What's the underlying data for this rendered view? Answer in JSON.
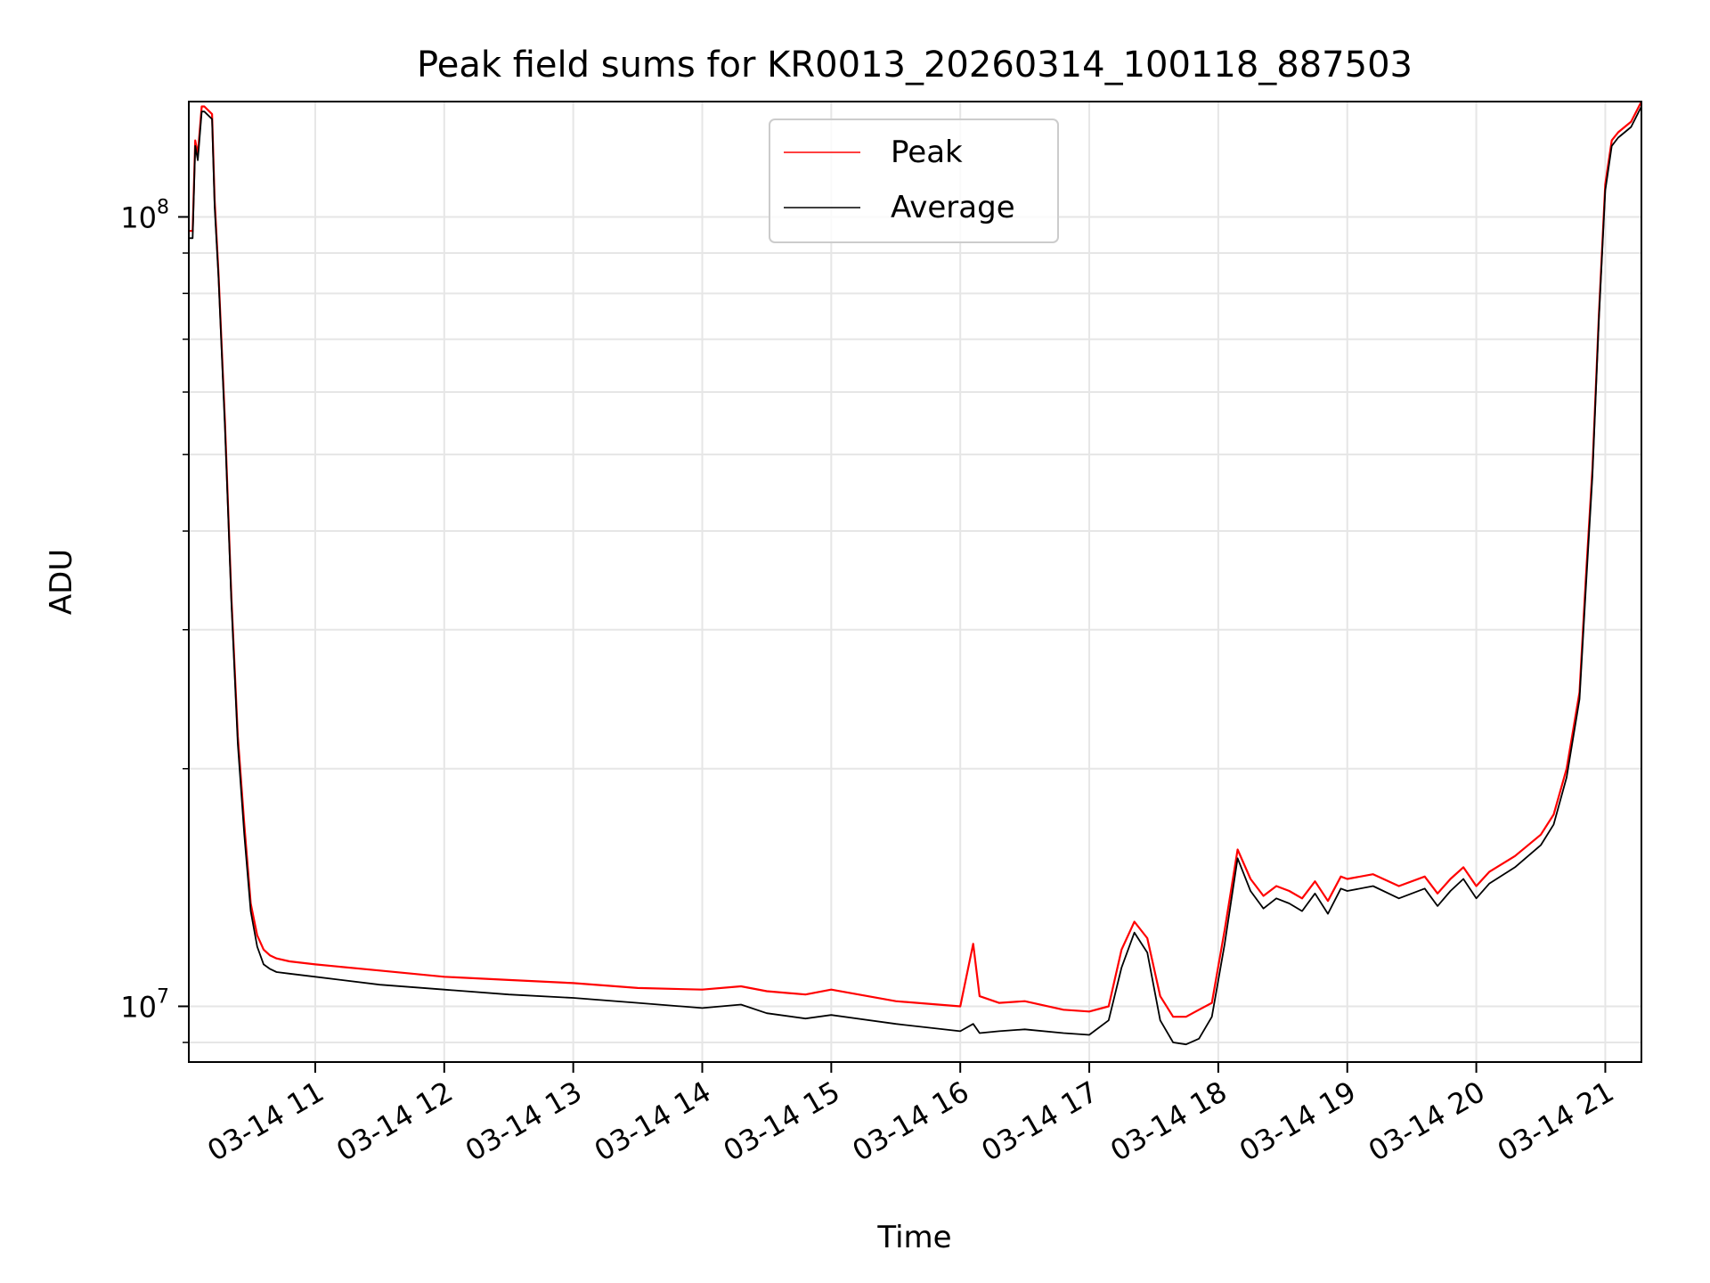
{
  "chart_data": {
    "type": "line",
    "title": "Peak field sums for KR0013_20260314_100118_887503",
    "xlabel": "Time",
    "ylabel": "ADU",
    "xlim_hours": [
      10.02,
      21.28
    ],
    "ylim": [
      8500000,
      140000000
    ],
    "yscale": "log",
    "grid": true,
    "legend_position": "top-center",
    "xticks": [
      {
        "value": 11,
        "label": "03-14 11"
      },
      {
        "value": 12,
        "label": "03-14 12"
      },
      {
        "value": 13,
        "label": "03-14 13"
      },
      {
        "value": 14,
        "label": "03-14 14"
      },
      {
        "value": 15,
        "label": "03-14 15"
      },
      {
        "value": 16,
        "label": "03-14 16"
      },
      {
        "value": 17,
        "label": "03-14 17"
      },
      {
        "value": 18,
        "label": "03-14 18"
      },
      {
        "value": 19,
        "label": "03-14 19"
      },
      {
        "value": 20,
        "label": "03-14 20"
      },
      {
        "value": 21,
        "label": "03-14 21"
      }
    ],
    "yticks": [
      {
        "value": 10000000,
        "base": "10",
        "exp": "7"
      },
      {
        "value": 100000000,
        "base": "10",
        "exp": "8"
      }
    ],
    "series": [
      {
        "name": "Peak",
        "color": "#ff0000",
        "x": [
          10.02,
          10.05,
          10.07,
          10.09,
          10.12,
          10.14,
          10.2,
          10.22,
          10.25,
          10.3,
          10.35,
          10.4,
          10.45,
          10.5,
          10.55,
          10.6,
          10.65,
          10.7,
          10.8,
          11.0,
          11.5,
          12.0,
          12.5,
          13.0,
          13.5,
          14.0,
          14.3,
          14.5,
          14.8,
          15.0,
          15.5,
          16.0,
          16.1,
          16.15,
          16.3,
          16.5,
          16.8,
          17.0,
          17.15,
          17.25,
          17.35,
          17.45,
          17.55,
          17.65,
          17.75,
          17.85,
          17.95,
          18.05,
          18.15,
          18.25,
          18.35,
          18.45,
          18.55,
          18.65,
          18.75,
          18.85,
          18.95,
          19.0,
          19.2,
          19.4,
          19.6,
          19.7,
          19.8,
          19.9,
          20.0,
          20.1,
          20.3,
          20.5,
          20.6,
          20.7,
          20.8,
          20.85,
          20.9,
          20.95,
          21.0,
          21.05,
          21.1,
          21.15,
          21.2,
          21.28
        ],
        "y": [
          96000000,
          96000000,
          125000000,
          120000000,
          138000000,
          138000000,
          135000000,
          105000000,
          85000000,
          55000000,
          33000000,
          22000000,
          17000000,
          13500000,
          12300000,
          11800000,
          11600000,
          11500000,
          11400000,
          11300000,
          11100000,
          10900000,
          10800000,
          10700000,
          10550000,
          10500000,
          10600000,
          10450000,
          10350000,
          10500000,
          10150000,
          10000000,
          12000000,
          10300000,
          10100000,
          10150000,
          9900000,
          9850000,
          10000000,
          11800000,
          12800000,
          12200000,
          10300000,
          9700000,
          9700000,
          9900000,
          10100000,
          12500000,
          15800000,
          14500000,
          13800000,
          14200000,
          14000000,
          13700000,
          14400000,
          13600000,
          14600000,
          14500000,
          14700000,
          14200000,
          14600000,
          13900000,
          14500000,
          15000000,
          14200000,
          14800000,
          15500000,
          16500000,
          17500000,
          20000000,
          25000000,
          35000000,
          48000000,
          75000000,
          110000000,
          125000000,
          128000000,
          130000000,
          132000000,
          140000000
        ]
      },
      {
        "name": "Average",
        "color": "#000000",
        "x": [
          10.02,
          10.05,
          10.07,
          10.09,
          10.12,
          10.14,
          10.2,
          10.22,
          10.25,
          10.3,
          10.35,
          10.4,
          10.45,
          10.5,
          10.55,
          10.6,
          10.65,
          10.7,
          10.8,
          11.0,
          11.5,
          12.0,
          12.5,
          13.0,
          13.5,
          14.0,
          14.3,
          14.5,
          14.8,
          15.0,
          15.5,
          16.0,
          16.1,
          16.15,
          16.3,
          16.5,
          16.8,
          17.0,
          17.15,
          17.25,
          17.35,
          17.45,
          17.55,
          17.65,
          17.75,
          17.85,
          17.95,
          18.05,
          18.15,
          18.25,
          18.35,
          18.45,
          18.55,
          18.65,
          18.75,
          18.85,
          18.95,
          19.0,
          19.2,
          19.4,
          19.6,
          19.7,
          19.8,
          19.9,
          20.0,
          20.1,
          20.3,
          20.5,
          20.6,
          20.7,
          20.8,
          20.85,
          20.9,
          20.95,
          21.0,
          21.05,
          21.1,
          21.15,
          21.2,
          21.28
        ],
        "y": [
          94000000,
          94000000,
          123000000,
          118000000,
          136000000,
          136000000,
          133000000,
          103000000,
          84000000,
          54000000,
          32500000,
          21500000,
          16500000,
          13200000,
          11900000,
          11300000,
          11150000,
          11050000,
          11000000,
          10900000,
          10650000,
          10500000,
          10350000,
          10250000,
          10100000,
          9950000,
          10050000,
          9800000,
          9650000,
          9750000,
          9500000,
          9300000,
          9500000,
          9250000,
          9300000,
          9350000,
          9250000,
          9200000,
          9600000,
          11200000,
          12400000,
          11700000,
          9600000,
          9000000,
          8950000,
          9100000,
          9700000,
          12000000,
          15400000,
          14000000,
          13300000,
          13700000,
          13500000,
          13200000,
          13900000,
          13100000,
          14100000,
          14000000,
          14200000,
          13700000,
          14100000,
          13400000,
          14000000,
          14500000,
          13700000,
          14300000,
          15000000,
          16000000,
          17000000,
          19500000,
          24500000,
          34000000,
          47000000,
          74000000,
          108000000,
          123000000,
          126000000,
          128000000,
          130000000,
          138000000
        ]
      }
    ]
  }
}
